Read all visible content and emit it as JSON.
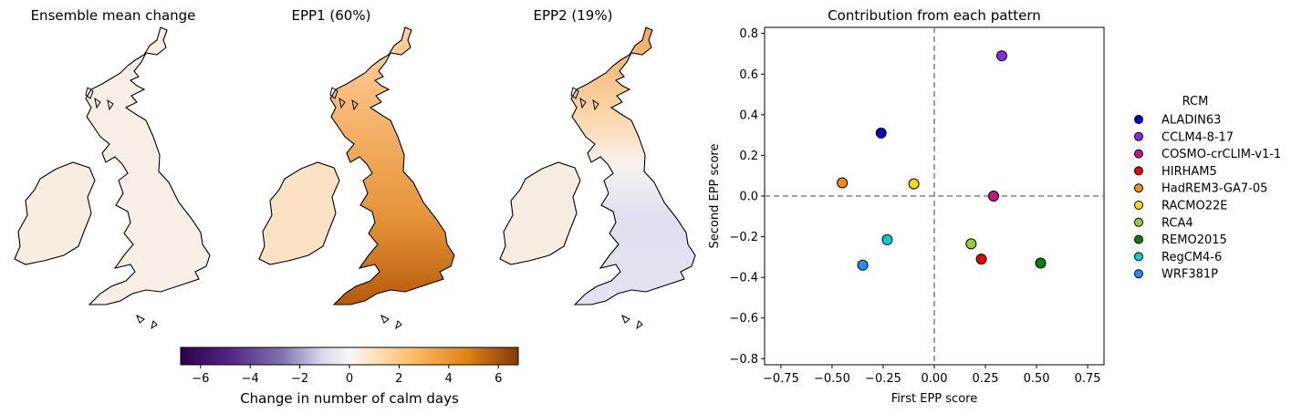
{
  "panels": {
    "map1_title": "Ensemble mean change",
    "map2_title": "EPP1 (60%)",
    "map3_title": "EPP2 (19%)",
    "scatter_title": "Contribution from each pattern"
  },
  "colors": {
    "coast": "#000000",
    "neg": "#3f007d",
    "mid": "#f7f7f7",
    "pos": "#7f3b08"
  },
  "colorbar": {
    "label": "Change in number of calm days",
    "min": -6.8,
    "max": 6.8,
    "ticks": [
      "−6",
      "−4",
      "−2",
      "0",
      "2",
      "4",
      "6"
    ],
    "tick_values": [
      -6,
      -4,
      -2,
      0,
      2,
      4,
      6
    ]
  },
  "chart_data": [
    {
      "type": "scatter",
      "title": "Contribution from each pattern",
      "xlabel": "First EPP score",
      "ylabel": "Second EPP score",
      "xlim": [
        -0.83,
        0.83
      ],
      "ylim": [
        -0.83,
        0.83
      ],
      "xticks": [
        -0.75,
        -0.5,
        -0.25,
        0.0,
        0.25,
        0.5,
        0.75
      ],
      "xtick_labels": [
        "−0.75",
        "−0.50",
        "−0.25",
        "0.00",
        "0.25",
        "0.50",
        "0.75"
      ],
      "yticks": [
        -0.8,
        -0.6,
        -0.4,
        -0.2,
        0.0,
        0.2,
        0.4,
        0.6,
        0.8
      ],
      "ytick_labels": [
        "−0.8",
        "−0.6",
        "−0.4",
        "−0.2",
        "0.0",
        "0.2",
        "0.4",
        "0.6",
        "0.8"
      ],
      "reference_lines": {
        "x": 0,
        "y": 0,
        "style": "dashed"
      },
      "legend_title": "RCM",
      "legend_position": "right",
      "points": [
        {
          "name": "ALADIN63",
          "x": -0.26,
          "y": 0.31,
          "color": "#0000cd"
        },
        {
          "name": "CCLM4-8-17",
          "x": 0.33,
          "y": 0.69,
          "color": "#8a2be2"
        },
        {
          "name": "COSMO-crCLIM-v1-1",
          "x": 0.29,
          "y": 0.0,
          "color": "#c71585"
        },
        {
          "name": "HIRHAM5",
          "x": 0.23,
          "y": -0.31,
          "color": "#ee0000"
        },
        {
          "name": "HadREM3-GA7-05",
          "x": -0.45,
          "y": 0.065,
          "color": "#ff8c00"
        },
        {
          "name": "RACMO22E",
          "x": -0.1,
          "y": 0.06,
          "color": "#ffd700"
        },
        {
          "name": "RCA4",
          "x": 0.18,
          "y": -0.235,
          "color": "#9acd32"
        },
        {
          "name": "REMO2015",
          "x": 0.52,
          "y": -0.33,
          "color": "#008000"
        },
        {
          "name": "RegCM4-6",
          "x": -0.23,
          "y": -0.215,
          "color": "#00ced1"
        },
        {
          "name": "WRF381P",
          "x": -0.35,
          "y": -0.34,
          "color": "#1e90ff"
        }
      ]
    },
    {
      "type": "heatmap",
      "title": "Ensemble mean change",
      "description_values": {
        "typical_change": 0.2
      }
    },
    {
      "type": "heatmap",
      "title": "EPP1 (60%)",
      "description_values": {
        "north": 1.8,
        "south": 4.5
      }
    },
    {
      "type": "heatmap",
      "title": "EPP2 (19%)",
      "description_values": {
        "north": 2.5,
        "south": -0.8
      }
    }
  ]
}
